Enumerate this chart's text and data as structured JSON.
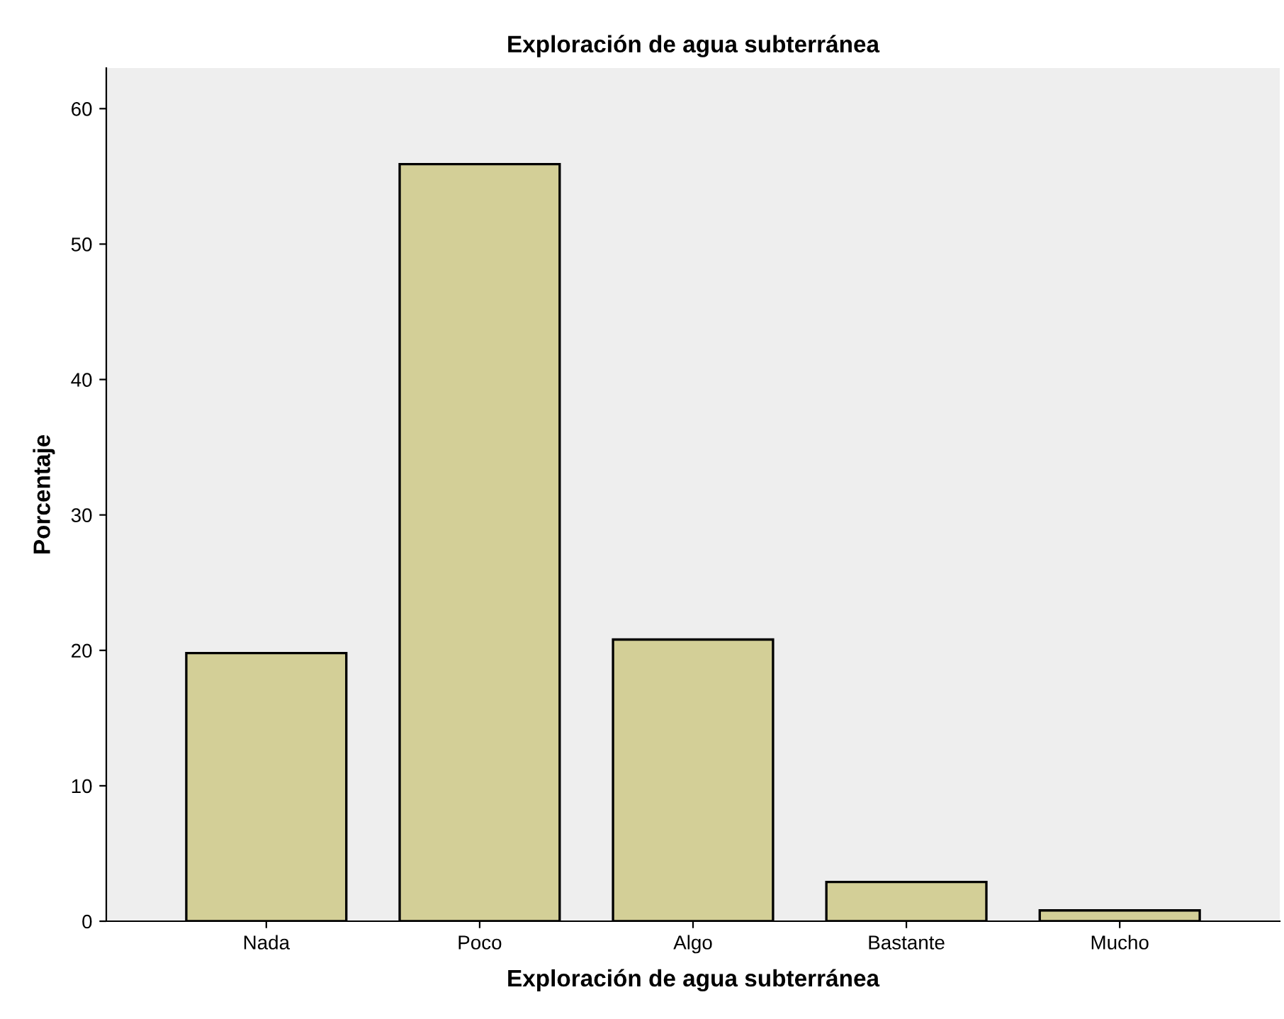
{
  "chart_data": {
    "type": "bar",
    "title": "Exploración de agua subterránea",
    "xlabel": "Exploración de agua subterránea",
    "ylabel": "Porcentaje",
    "categories": [
      "Nada",
      "Poco",
      "Algo",
      "Bastante",
      "Mucho"
    ],
    "values": [
      19.8,
      55.9,
      20.8,
      2.9,
      0.8
    ],
    "color": "#d3cf97",
    "ylim": [
      0,
      63
    ],
    "yticks": [
      0,
      10,
      20,
      30,
      40,
      50,
      60
    ],
    "grid": false
  }
}
